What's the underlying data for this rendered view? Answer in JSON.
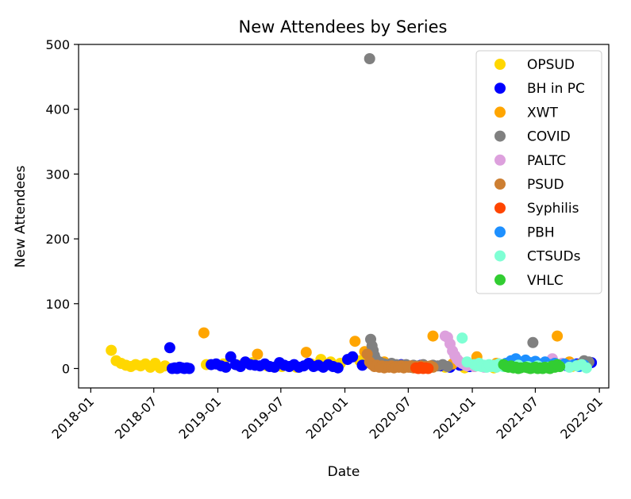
{
  "chart_data": {
    "type": "scatter",
    "title": "New Attendees by Series",
    "xlabel": "Date",
    "ylabel": "New Attendees",
    "xlim": [
      "2017-11-27",
      "2022-01-28"
    ],
    "ylim": [
      -30,
      500
    ],
    "x_ticks": [
      "2018-01",
      "2018-07",
      "2019-01",
      "2019-07",
      "2020-01",
      "2020-07",
      "2021-01",
      "2021-07",
      "2022-01"
    ],
    "y_ticks": [
      0,
      100,
      200,
      300,
      400,
      500
    ],
    "grid": false,
    "legend": "top-right",
    "series": [
      {
        "name": "OPSUD",
        "color": "#ffd700",
        "points": [
          [
            "2018-03-01",
            28
          ],
          [
            "2018-03-15",
            12
          ],
          [
            "2018-03-29",
            8
          ],
          [
            "2018-04-12",
            5
          ],
          [
            "2018-04-26",
            3
          ],
          [
            "2018-05-10",
            6
          ],
          [
            "2018-05-24",
            4
          ],
          [
            "2018-06-07",
            7
          ],
          [
            "2018-06-21",
            2
          ],
          [
            "2018-07-05",
            8
          ],
          [
            "2018-07-19",
            1
          ],
          [
            "2018-08-02",
            4
          ],
          [
            "2018-11-29",
            6
          ],
          [
            "2019-01-17",
            7
          ],
          [
            "2019-02-28",
            5
          ],
          [
            "2019-04-11",
            9
          ],
          [
            "2019-05-23",
            4
          ],
          [
            "2019-07-04",
            3
          ],
          [
            "2019-08-15",
            2
          ],
          [
            "2019-09-26",
            7
          ],
          [
            "2019-10-24",
            14
          ],
          [
            "2019-11-21",
            10
          ],
          [
            "2019-12-19",
            8
          ],
          [
            "2020-02-13",
            12
          ],
          [
            "2020-04-09",
            9
          ],
          [
            "2020-05-07",
            6
          ],
          [
            "2020-06-04",
            3
          ],
          [
            "2020-08-20",
            2
          ],
          [
            "2020-10-15",
            2
          ],
          [
            "2020-12-10",
            1
          ],
          [
            "2021-01-07",
            3
          ],
          [
            "2021-03-04",
            1
          ],
          [
            "2021-04-29",
            2
          ],
          [
            "2021-06-24",
            4
          ],
          [
            "2021-08-19",
            2
          ],
          [
            "2021-10-14",
            3
          ],
          [
            "2021-11-11",
            4
          ]
        ]
      },
      {
        "name": "BH in PC",
        "color": "#0000ff",
        "points": [
          [
            "2018-08-16",
            32
          ],
          [
            "2018-08-23",
            0
          ],
          [
            "2018-08-30",
            1
          ],
          [
            "2018-09-06",
            0
          ],
          [
            "2018-09-13",
            2
          ],
          [
            "2018-09-20",
            1
          ],
          [
            "2018-09-27",
            0
          ],
          [
            "2018-10-04",
            1
          ],
          [
            "2018-10-11",
            0
          ],
          [
            "2018-12-13",
            6
          ],
          [
            "2018-12-27",
            7
          ],
          [
            "2019-01-10",
            4
          ],
          [
            "2019-01-24",
            2
          ],
          [
            "2019-02-07",
            18
          ],
          [
            "2019-02-21",
            6
          ],
          [
            "2019-03-07",
            3
          ],
          [
            "2019-03-21",
            10
          ],
          [
            "2019-04-04",
            6
          ],
          [
            "2019-04-18",
            5
          ],
          [
            "2019-05-02",
            4
          ],
          [
            "2019-05-16",
            7
          ],
          [
            "2019-05-30",
            3
          ],
          [
            "2019-06-13",
            2
          ],
          [
            "2019-06-27",
            9
          ],
          [
            "2019-07-11",
            5
          ],
          [
            "2019-07-25",
            3
          ],
          [
            "2019-08-08",
            6
          ],
          [
            "2019-08-22",
            2
          ],
          [
            "2019-09-05",
            4
          ],
          [
            "2019-09-19",
            8
          ],
          [
            "2019-10-03",
            3
          ],
          [
            "2019-10-17",
            5
          ],
          [
            "2019-10-31",
            2
          ],
          [
            "2019-11-14",
            6
          ],
          [
            "2019-11-28",
            3
          ],
          [
            "2019-12-12",
            1
          ],
          [
            "2020-01-09",
            14
          ],
          [
            "2020-01-23",
            18
          ],
          [
            "2020-02-20",
            5
          ],
          [
            "2020-03-19",
            7
          ],
          [
            "2020-04-16",
            4
          ],
          [
            "2020-05-14",
            3
          ],
          [
            "2020-06-11",
            6
          ],
          [
            "2020-07-09",
            2
          ],
          [
            "2020-08-06",
            5
          ],
          [
            "2020-09-03",
            3
          ],
          [
            "2020-10-01",
            4
          ],
          [
            "2020-10-29",
            2
          ],
          [
            "2020-11-26",
            5
          ],
          [
            "2020-12-24",
            3
          ],
          [
            "2021-01-21",
            6
          ],
          [
            "2021-02-18",
            4
          ],
          [
            "2021-03-18",
            7
          ],
          [
            "2021-04-15",
            3
          ],
          [
            "2021-05-13",
            5
          ],
          [
            "2021-06-10",
            4
          ],
          [
            "2021-07-08",
            6
          ],
          [
            "2021-08-05",
            3
          ],
          [
            "2021-09-02",
            5
          ],
          [
            "2021-09-30",
            4
          ],
          [
            "2021-10-28",
            7
          ],
          [
            "2021-11-25",
            6
          ],
          [
            "2021-12-09",
            9
          ]
        ]
      },
      {
        "name": "XWT",
        "color": "#ffa500",
        "points": [
          [
            "2018-11-22",
            55
          ],
          [
            "2019-04-25",
            22
          ],
          [
            "2019-09-12",
            25
          ],
          [
            "2020-01-30",
            42
          ],
          [
            "2020-02-27",
            26
          ],
          [
            "2020-04-23",
            10
          ],
          [
            "2020-06-18",
            5
          ],
          [
            "2020-09-10",
            50
          ],
          [
            "2020-11-05",
            7
          ],
          [
            "2021-01-14",
            18
          ],
          [
            "2021-03-11",
            8
          ],
          [
            "2021-05-06",
            6
          ],
          [
            "2021-07-01",
            4
          ],
          [
            "2021-09-02",
            50
          ],
          [
            "2021-10-07",
            10
          ],
          [
            "2021-11-04",
            6
          ]
        ]
      },
      {
        "name": "COVID",
        "color": "#808080",
        "points": [
          [
            "2020-03-12",
            478
          ],
          [
            "2020-03-15",
            45
          ],
          [
            "2020-03-19",
            35
          ],
          [
            "2020-03-22",
            28
          ],
          [
            "2020-03-26",
            20
          ],
          [
            "2020-03-29",
            15
          ],
          [
            "2020-04-02",
            12
          ],
          [
            "2020-04-09",
            10
          ],
          [
            "2020-04-16",
            8
          ],
          [
            "2020-04-23",
            7
          ],
          [
            "2020-04-30",
            6
          ],
          [
            "2020-05-07",
            5
          ],
          [
            "2020-05-14",
            8
          ],
          [
            "2020-05-21",
            4
          ],
          [
            "2020-05-28",
            6
          ],
          [
            "2020-06-04",
            3
          ],
          [
            "2020-06-11",
            5
          ],
          [
            "2020-06-18",
            4
          ],
          [
            "2020-06-25",
            6
          ],
          [
            "2020-07-02",
            3
          ],
          [
            "2020-07-16",
            5
          ],
          [
            "2020-07-30",
            4
          ],
          [
            "2020-08-13",
            6
          ],
          [
            "2020-08-27",
            3
          ],
          [
            "2020-09-10",
            5
          ],
          [
            "2020-09-24",
            4
          ],
          [
            "2020-10-08",
            6
          ],
          [
            "2020-10-22",
            3
          ],
          [
            "2021-06-24",
            40
          ],
          [
            "2021-11-18",
            12
          ],
          [
            "2021-12-02",
            10
          ]
        ]
      },
      {
        "name": "PALTC",
        "color": "#dda0dd",
        "points": [
          [
            "2020-10-15",
            50
          ],
          [
            "2020-10-22",
            48
          ],
          [
            "2020-10-29",
            38
          ],
          [
            "2020-11-05",
            27
          ],
          [
            "2020-11-12",
            20
          ],
          [
            "2020-11-19",
            14
          ],
          [
            "2020-11-26",
            10
          ],
          [
            "2020-12-03",
            8
          ],
          [
            "2020-12-10",
            6
          ],
          [
            "2020-12-17",
            4
          ],
          [
            "2020-12-24",
            5
          ],
          [
            "2021-01-07",
            3
          ],
          [
            "2021-01-21",
            4
          ],
          [
            "2021-02-04",
            2
          ],
          [
            "2021-08-19",
            15
          ],
          [
            "2021-09-16",
            8
          ],
          [
            "2021-10-14",
            6
          ]
        ]
      },
      {
        "name": "PSUD",
        "color": "#cd7f32",
        "points": [
          [
            "2020-03-05",
            22
          ],
          [
            "2020-03-12",
            10
          ],
          [
            "2020-03-19",
            6
          ],
          [
            "2020-03-26",
            3
          ],
          [
            "2020-04-02",
            5
          ],
          [
            "2020-04-09",
            2
          ],
          [
            "2020-04-16",
            4
          ],
          [
            "2020-04-23",
            1
          ],
          [
            "2020-04-30",
            3
          ],
          [
            "2020-05-07",
            2
          ],
          [
            "2020-05-14",
            4
          ],
          [
            "2020-05-21",
            1
          ],
          [
            "2020-05-28",
            3
          ],
          [
            "2020-06-04",
            2
          ],
          [
            "2020-06-11",
            4
          ],
          [
            "2020-06-18",
            1
          ],
          [
            "2020-06-25",
            3
          ],
          [
            "2020-07-02",
            2
          ],
          [
            "2020-07-09",
            4
          ],
          [
            "2020-07-16",
            1
          ],
          [
            "2020-07-23",
            3
          ],
          [
            "2020-07-30",
            2
          ],
          [
            "2020-08-06",
            4
          ],
          [
            "2020-08-13",
            1
          ],
          [
            "2020-08-20",
            3
          ],
          [
            "2020-08-27",
            2
          ],
          [
            "2020-09-03",
            4
          ],
          [
            "2020-09-10",
            2
          ]
        ]
      },
      {
        "name": "Syphilis",
        "color": "#ff4500",
        "points": [
          [
            "2020-07-23",
            1
          ],
          [
            "2020-07-30",
            0
          ],
          [
            "2020-08-06",
            2
          ],
          [
            "2020-08-13",
            0
          ],
          [
            "2020-08-20",
            1
          ],
          [
            "2020-08-27",
            0
          ]
        ]
      },
      {
        "name": "PBH",
        "color": "#1e90ff",
        "points": [
          [
            "2021-04-08",
            8
          ],
          [
            "2021-04-22",
            12
          ],
          [
            "2021-05-06",
            15
          ],
          [
            "2021-05-20",
            10
          ],
          [
            "2021-06-03",
            13
          ],
          [
            "2021-06-17",
            9
          ],
          [
            "2021-07-01",
            11
          ],
          [
            "2021-07-15",
            7
          ],
          [
            "2021-07-29",
            10
          ],
          [
            "2021-08-12",
            6
          ],
          [
            "2021-08-26",
            8
          ],
          [
            "2021-09-09",
            5
          ],
          [
            "2021-09-23",
            7
          ],
          [
            "2021-10-07",
            4
          ],
          [
            "2021-10-21",
            6
          ],
          [
            "2021-11-04",
            3
          ],
          [
            "2021-11-18",
            5
          ]
        ]
      },
      {
        "name": "CTSUDs",
        "color": "#7fffd4",
        "points": [
          [
            "2020-12-03",
            47
          ],
          [
            "2020-12-17",
            10
          ],
          [
            "2021-01-07",
            6
          ],
          [
            "2021-01-14",
            4
          ],
          [
            "2021-01-21",
            8
          ],
          [
            "2021-01-28",
            3
          ],
          [
            "2021-02-04",
            5
          ],
          [
            "2021-02-11",
            2
          ],
          [
            "2021-02-18",
            6
          ],
          [
            "2021-02-25",
            3
          ],
          [
            "2021-03-04",
            5
          ],
          [
            "2021-03-11",
            2
          ],
          [
            "2021-03-18",
            7
          ],
          [
            "2021-03-25",
            4
          ],
          [
            "2021-04-01",
            3
          ],
          [
            "2021-05-13",
            5
          ],
          [
            "2021-06-10",
            3
          ],
          [
            "2021-07-08",
            4
          ],
          [
            "2021-08-05",
            2
          ],
          [
            "2021-09-09",
            3
          ],
          [
            "2021-10-07",
            2
          ],
          [
            "2021-10-28",
            4
          ],
          [
            "2021-11-11",
            6
          ],
          [
            "2021-11-25",
            1
          ]
        ]
      },
      {
        "name": "VHLC",
        "color": "#32cd32",
        "points": [
          [
            "2021-04-01",
            6
          ],
          [
            "2021-04-08",
            3
          ],
          [
            "2021-04-15",
            2
          ],
          [
            "2021-04-22",
            4
          ],
          [
            "2021-04-29",
            1
          ],
          [
            "2021-05-06",
            2
          ],
          [
            "2021-05-13",
            0
          ],
          [
            "2021-05-20",
            1
          ],
          [
            "2021-06-03",
            2
          ],
          [
            "2021-06-10",
            1
          ],
          [
            "2021-06-17",
            0
          ],
          [
            "2021-06-24",
            1
          ],
          [
            "2021-07-01",
            2
          ],
          [
            "2021-07-08",
            0
          ],
          [
            "2021-07-15",
            1
          ],
          [
            "2021-07-22",
            0
          ],
          [
            "2021-07-29",
            2
          ],
          [
            "2021-08-05",
            1
          ],
          [
            "2021-08-12",
            0
          ],
          [
            "2021-08-19",
            4
          ],
          [
            "2021-08-26",
            2
          ],
          [
            "2021-09-02",
            6
          ],
          [
            "2021-09-09",
            3
          ]
        ]
      }
    ]
  }
}
